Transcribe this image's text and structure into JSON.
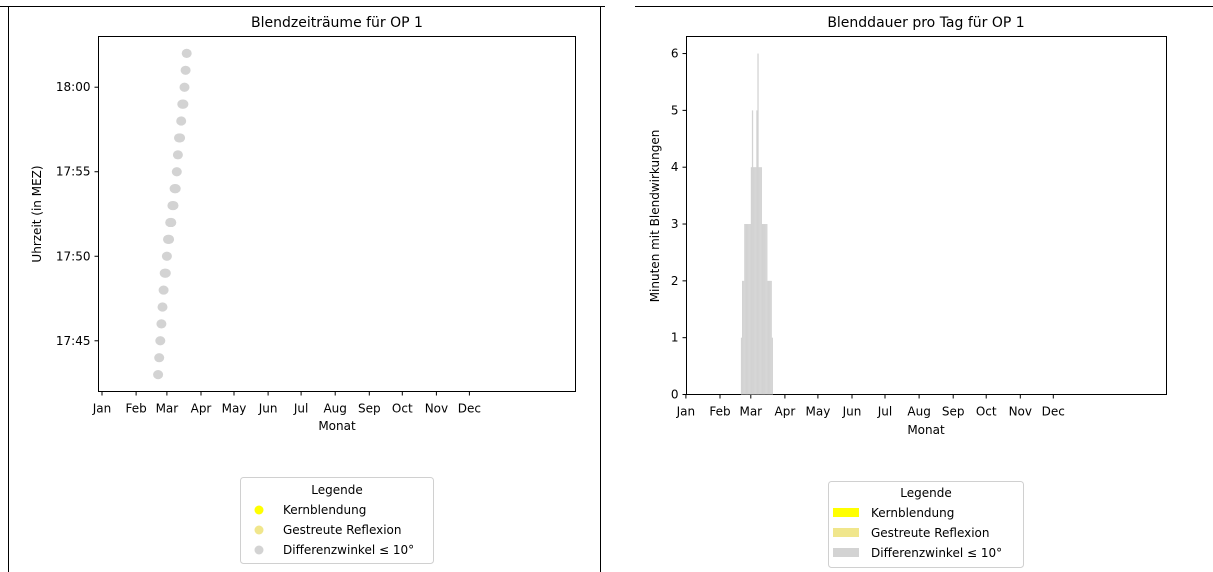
{
  "months": [
    "Jan",
    "Feb",
    "Mar",
    "Apr",
    "May",
    "Jun",
    "Jul",
    "Aug",
    "Sep",
    "Oct",
    "Nov",
    "Dec"
  ],
  "legend": {
    "title": "Legende",
    "entries": [
      {
        "label": "Kernblendung",
        "color": "#ffff00"
      },
      {
        "label": "Gestreute Reflexion",
        "color": "#f0e68c"
      },
      {
        "label": "Differenzwinkel ≤ 10°",
        "color": "#d3d3d3"
      }
    ]
  },
  "chart_data": [
    {
      "type": "scatter",
      "title": "Blendzeiträume für OP 1",
      "xlabel": "Monat",
      "ylabel": "Uhrzeit (in MEZ)",
      "yticks": [
        "17:45",
        "17:50",
        "17:55",
        "18:00"
      ],
      "ylim": [
        "17:42",
        "18:03"
      ],
      "grid": false,
      "legend_position": "bottom",
      "series": [
        {
          "name": "Differenzwinkel ≤ 10°",
          "color": "#d3d3d3",
          "points": [
            {
              "date": "Feb-21",
              "time": "17:43"
            },
            {
              "date": "Feb-22",
              "time": "17:44"
            },
            {
              "date": "Feb-23",
              "time": "17:45"
            },
            {
              "date": "Feb-24",
              "time": "17:46"
            },
            {
              "date": "Feb-25",
              "time": "17:47"
            },
            {
              "date": "Feb-26",
              "time": "17:48"
            },
            {
              "date": "Feb-27",
              "time": "17:49"
            },
            {
              "date": "Feb-28",
              "time": "17:49"
            },
            {
              "date": "Mar-01",
              "time": "17:50"
            },
            {
              "date": "Mar-02",
              "time": "17:51"
            },
            {
              "date": "Mar-03",
              "time": "17:51"
            },
            {
              "date": "Mar-04",
              "time": "17:52"
            },
            {
              "date": "Mar-05",
              "time": "17:52"
            },
            {
              "date": "Mar-06",
              "time": "17:53"
            },
            {
              "date": "Mar-07",
              "time": "17:53"
            },
            {
              "date": "Mar-08",
              "time": "17:54"
            },
            {
              "date": "Mar-09",
              "time": "17:54"
            },
            {
              "date": "Mar-10",
              "time": "17:55"
            },
            {
              "date": "Mar-11",
              "time": "17:56"
            },
            {
              "date": "Mar-12",
              "time": "17:57"
            },
            {
              "date": "Mar-13",
              "time": "17:57"
            },
            {
              "date": "Mar-14",
              "time": "17:58"
            },
            {
              "date": "Mar-15",
              "time": "17:59"
            },
            {
              "date": "Mar-16",
              "time": "17:59"
            },
            {
              "date": "Mar-17",
              "time": "18:00"
            },
            {
              "date": "Mar-18",
              "time": "18:01"
            },
            {
              "date": "Mar-19",
              "time": "18:02"
            }
          ]
        }
      ]
    },
    {
      "type": "bar",
      "title": "Blenddauer pro Tag für OP 1",
      "xlabel": "Monat",
      "ylabel": "Minuten mit Blendwirkungen",
      "yticks": [
        0,
        1,
        2,
        3,
        4,
        5,
        6
      ],
      "ylim": [
        0,
        6.3
      ],
      "grid": false,
      "legend_position": "bottom",
      "series": [
        {
          "name": "Differenzwinkel ≤ 10°",
          "color": "#d3d3d3",
          "days": [
            "Feb-20",
            "Feb-21",
            "Feb-22",
            "Feb-23",
            "Feb-24",
            "Feb-25",
            "Feb-26",
            "Feb-27",
            "Feb-28",
            "Mar-01",
            "Mar-02",
            "Mar-03",
            "Mar-04",
            "Mar-05",
            "Mar-06",
            "Mar-07",
            "Mar-08",
            "Mar-09",
            "Mar-10",
            "Mar-11",
            "Mar-12",
            "Mar-13",
            "Mar-14",
            "Mar-15",
            "Mar-16",
            "Mar-17",
            "Mar-18",
            "Mar-19",
            "Mar-20"
          ],
          "values": [
            1,
            2,
            2,
            3,
            3,
            3,
            3,
            3,
            3,
            4,
            5,
            4,
            4,
            4,
            5,
            6,
            4,
            4,
            4,
            3,
            3,
            3,
            3,
            3,
            2,
            2,
            2,
            2,
            1
          ]
        }
      ]
    }
  ]
}
